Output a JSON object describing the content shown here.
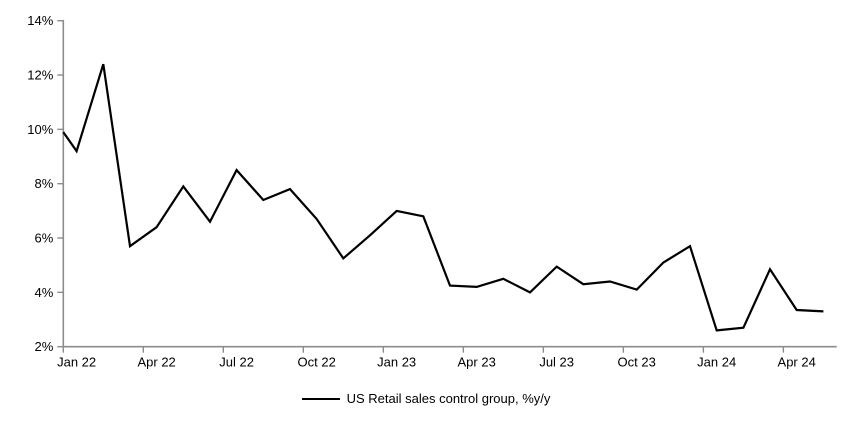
{
  "chart_data": {
    "type": "line",
    "legend_position": "bottom",
    "grid": false,
    "background": "#ffffff",
    "axis_color": "#8c8c8c",
    "y_axis": {
      "min": 2,
      "max": 14,
      "step": 2,
      "tick_labels": [
        "2%",
        "4%",
        "6%",
        "8%",
        "10%",
        "12%",
        "14%"
      ]
    },
    "x_axis": {
      "tick_interval_months": 3,
      "tick_labels": [
        "Jan 22",
        "Apr 22",
        "Jul 22",
        "Oct 22",
        "Jan 23",
        "Apr 23",
        "Jul 23",
        "Oct 23",
        "Jan 24",
        "Apr 24"
      ]
    },
    "categories": [
      "Jan 22",
      "Feb 22",
      "Mar 22",
      "Apr 22",
      "May 22",
      "Jun 22",
      "Jul 22",
      "Aug 22",
      "Sep 22",
      "Oct 22",
      "Nov 22",
      "Dec 22",
      "Jan 23",
      "Feb 23",
      "Mar 23",
      "Apr 23",
      "May 23",
      "Jun 23",
      "Jul 23",
      "Aug 23",
      "Sep 23",
      "Oct 23",
      "Nov 23",
      "Dec 23",
      "Jan 24",
      "Feb 24",
      "Mar 24",
      "Apr 24",
      "May 24"
    ],
    "series": [
      {
        "name": "US Retail sales control group, %y/y",
        "color": "#000000",
        "values": [
          9.2,
          12.4,
          5.7,
          6.4,
          7.9,
          6.6,
          8.5,
          7.4,
          7.8,
          6.7,
          5.25,
          6.1,
          7.0,
          6.8,
          4.25,
          4.2,
          4.5,
          4.0,
          4.95,
          4.3,
          4.4,
          4.1,
          5.1,
          5.7,
          2.6,
          2.7,
          4.85,
          3.35,
          3.3
        ]
      }
    ],
    "line_enters_at_left_axis_value": 9.9
  },
  "legend": {
    "label": "US Retail sales control group, %y/y"
  }
}
